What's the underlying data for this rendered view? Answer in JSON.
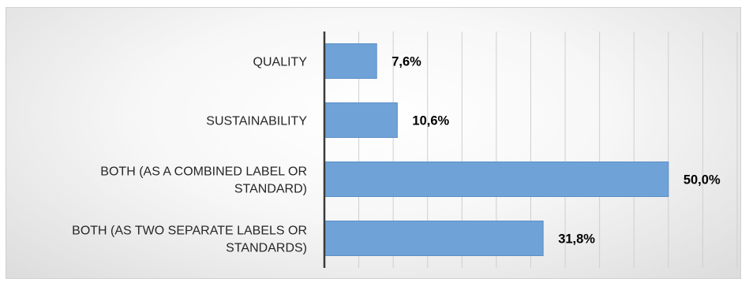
{
  "colors": {
    "bar": "#6fa3d8",
    "bar_stroke": "#5b8fc7",
    "gridline": "#cfcfcf",
    "axis": "#3a3a3a"
  },
  "chart_data": {
    "type": "bar",
    "orientation": "horizontal",
    "categories": [
      [
        "QUALITY"
      ],
      [
        "SUSTAINABILITY"
      ],
      [
        "BOTH (AS A COMBINED LABEL OR",
        "STANDARD)"
      ],
      [
        "BOTH (AS TWO SEPARATE LABELS OR",
        "STANDARDS)"
      ]
    ],
    "values": [
      7.6,
      10.6,
      50.0,
      31.8
    ],
    "data_labels": [
      "7,6%",
      "10,6%",
      "50,0%",
      "31,8%"
    ],
    "xlim": [
      0,
      60
    ],
    "x_tick_step": 5,
    "grid": true,
    "legend": "none"
  }
}
